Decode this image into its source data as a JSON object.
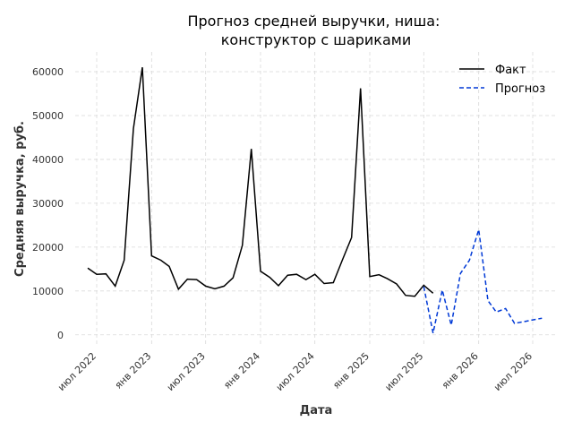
{
  "chart_data": {
    "type": "line",
    "title": [
      "Прогноз средней выручки, ниша:",
      "конструктор с шариками"
    ],
    "xlabel": "Дата",
    "ylabel": "Средняя выручка, руб.",
    "ylim": [
      -2500,
      64500
    ],
    "yticks": [
      0,
      10000,
      20000,
      30000,
      40000,
      50000,
      60000
    ],
    "ytick_labels": [
      "0",
      "10000",
      "20000",
      "30000",
      "40000",
      "50000",
      "60000"
    ],
    "xlim": [
      "2022-04-20",
      "2026-09-20"
    ],
    "xticks": [
      "2022-07-01",
      "2023-01-01",
      "2023-07-01",
      "2024-01-01",
      "2024-07-01",
      "2025-01-01",
      "2025-07-01",
      "2026-01-01",
      "2026-07-01"
    ],
    "xtick_labels": [
      "июл 2022",
      "янв 2023",
      "июл 2023",
      "янв 2024",
      "июл 2024",
      "янв 2025",
      "июл 2025",
      "янв 2026",
      "июл 2026"
    ],
    "grid": true,
    "legend_position": "top-right",
    "series": [
      {
        "name": "Факт",
        "color": "#000000",
        "style": "solid",
        "x": [
          "2022-06-01",
          "2022-07-01",
          "2022-08-01",
          "2022-09-01",
          "2022-10-01",
          "2022-11-01",
          "2022-12-01",
          "2023-01-01",
          "2023-02-01",
          "2023-03-01",
          "2023-04-01",
          "2023-05-01",
          "2023-06-01",
          "2023-07-01",
          "2023-08-01",
          "2023-09-01",
          "2023-10-01",
          "2023-11-01",
          "2023-12-01",
          "2024-01-01",
          "2024-02-01",
          "2024-03-01",
          "2024-04-01",
          "2024-05-01",
          "2024-06-01",
          "2024-07-01",
          "2024-08-01",
          "2024-09-01",
          "2024-10-01",
          "2024-11-01",
          "2024-12-01",
          "2025-01-01",
          "2025-02-01",
          "2025-03-01",
          "2025-04-01",
          "2025-05-01",
          "2025-06-01",
          "2025-07-01",
          "2025-08-01"
        ],
        "values": [
          15200,
          13800,
          13900,
          11100,
          17000,
          47000,
          61000,
          18000,
          17000,
          15600,
          10400,
          12700,
          12600,
          11100,
          10500,
          11100,
          13000,
          20400,
          42400,
          14500,
          13100,
          11200,
          13600,
          13800,
          12600,
          13800,
          11700,
          11900,
          17000,
          22200,
          56200,
          13300,
          13700,
          12800,
          11600,
          9000,
          8800,
          11300,
          9500
        ]
      },
      {
        "name": "Прогноз",
        "color": "#0039d6",
        "style": "dashed",
        "x": [
          "2025-07-01",
          "2025-08-01",
          "2025-09-01",
          "2025-10-01",
          "2025-11-01",
          "2025-12-01",
          "2026-01-01",
          "2026-02-01",
          "2026-03-01",
          "2026-04-01",
          "2026-05-01",
          "2026-06-01",
          "2026-07-01",
          "2026-08-01"
        ],
        "values": [
          11000,
          400,
          10200,
          2200,
          14000,
          17000,
          24000,
          7800,
          5200,
          6000,
          2600,
          3000,
          3400,
          3800
        ]
      }
    ]
  }
}
